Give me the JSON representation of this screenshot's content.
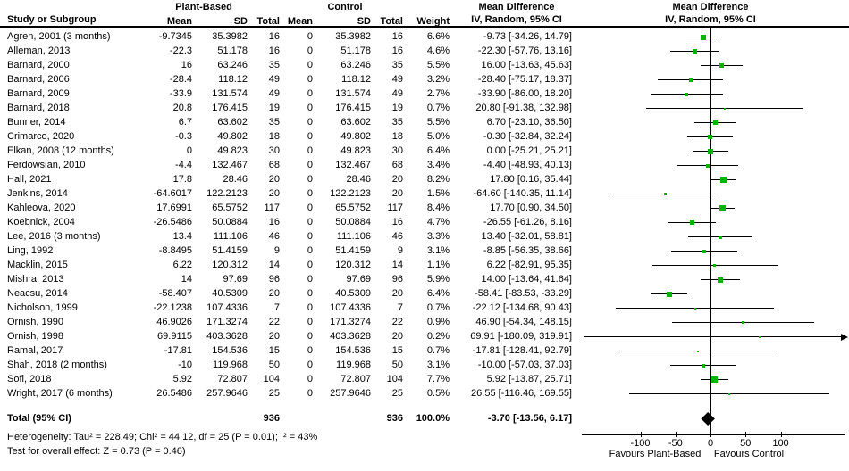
{
  "header": {
    "study_col": "Study or Subgroup",
    "group1": "Plant-Based",
    "group2": "Control",
    "mean": "Mean",
    "sd": "SD",
    "total": "Total",
    "weight": "Weight",
    "md_title": "Mean Difference",
    "md_subtitle": "IV, Random, 95% CI"
  },
  "footer": {
    "heterogeneity": "Heterogeneity: Tau² = 228.49; Chi² = 44.12, df = 25 (P = 0.01); I² = 43%",
    "overall_effect": "Test for overall effect: Z = 0.73 (P = 0.46)"
  },
  "chart_data": {
    "type": "scatter",
    "title": "Mean Difference",
    "subtitle": "IV, Random, 95% CI",
    "xlabel_left": "Favours Plant-Based",
    "xlabel_right": "Favours Control",
    "x_ticks": [
      -100,
      -50,
      0,
      50,
      100
    ],
    "marker_color": "#00b400",
    "line_color": "#000000",
    "studies": [
      {
        "name": "Agren, 2001 (3 months)",
        "mean_pb": "-9.7345",
        "sd_pb": "35.3982",
        "n_pb": "16",
        "mean_c": "0",
        "sd_c": "35.3982",
        "n_c": "16",
        "weight": "6.6%",
        "w": 6.6,
        "ci_text": "-9.73 [-34.26, 14.79]",
        "md": -9.73,
        "lo": -34.26,
        "hi": 14.79
      },
      {
        "name": "Alleman, 2013",
        "mean_pb": "-22.3",
        "sd_pb": "51.178",
        "n_pb": "16",
        "mean_c": "0",
        "sd_c": "51.178",
        "n_c": "16",
        "weight": "4.6%",
        "w": 4.6,
        "ci_text": "-22.30 [-57.76, 13.16]",
        "md": -22.3,
        "lo": -57.76,
        "hi": 13.16
      },
      {
        "name": "Barnard, 2000",
        "mean_pb": "16",
        "sd_pb": "63.246",
        "n_pb": "35",
        "mean_c": "0",
        "sd_c": "63.246",
        "n_c": "35",
        "weight": "5.5%",
        "w": 5.5,
        "ci_text": "16.00 [-13.63, 45.63]",
        "md": 16.0,
        "lo": -13.63,
        "hi": 45.63
      },
      {
        "name": "Barnard, 2006",
        "mean_pb": "-28.4",
        "sd_pb": "118.12",
        "n_pb": "49",
        "mean_c": "0",
        "sd_c": "118.12",
        "n_c": "49",
        "weight": "3.2%",
        "w": 3.2,
        "ci_text": "-28.40 [-75.17, 18.37]",
        "md": -28.4,
        "lo": -75.17,
        "hi": 18.37
      },
      {
        "name": "Barnard, 2009",
        "mean_pb": "-33.9",
        "sd_pb": "131.574",
        "n_pb": "49",
        "mean_c": "0",
        "sd_c": "131.574",
        "n_c": "49",
        "weight": "2.7%",
        "w": 2.7,
        "ci_text": "-33.90 [-86.00, 18.20]",
        "md": -33.9,
        "lo": -86.0,
        "hi": 18.2
      },
      {
        "name": "Barnard, 2018",
        "mean_pb": "20.8",
        "sd_pb": "176.415",
        "n_pb": "19",
        "mean_c": "0",
        "sd_c": "176.415",
        "n_c": "19",
        "weight": "0.7%",
        "w": 0.7,
        "ci_text": "20.80 [-91.38, 132.98]",
        "md": 20.8,
        "lo": -91.38,
        "hi": 132.98
      },
      {
        "name": "Bunner, 2014",
        "mean_pb": "6.7",
        "sd_pb": "63.602",
        "n_pb": "35",
        "mean_c": "0",
        "sd_c": "63.602",
        "n_c": "35",
        "weight": "5.5%",
        "w": 5.5,
        "ci_text": "6.70 [-23.10, 36.50]",
        "md": 6.7,
        "lo": -23.1,
        "hi": 36.5
      },
      {
        "name": "Crimarco, 2020",
        "mean_pb": "-0.3",
        "sd_pb": "49.802",
        "n_pb": "18",
        "mean_c": "0",
        "sd_c": "49.802",
        "n_c": "18",
        "weight": "5.0%",
        "w": 5.0,
        "ci_text": "-0.30 [-32.84, 32.24]",
        "md": -0.3,
        "lo": -32.84,
        "hi": 32.24
      },
      {
        "name": "Elkan, 2008 (12 months)",
        "mean_pb": "0",
        "sd_pb": "49.823",
        "n_pb": "30",
        "mean_c": "0",
        "sd_c": "49.823",
        "n_c": "30",
        "weight": "6.4%",
        "w": 6.4,
        "ci_text": "0.00 [-25.21, 25.21]",
        "md": 0.0,
        "lo": -25.21,
        "hi": 25.21
      },
      {
        "name": "Ferdowsian, 2010",
        "mean_pb": "-4.4",
        "sd_pb": "132.467",
        "n_pb": "68",
        "mean_c": "0",
        "sd_c": "132.467",
        "n_c": "68",
        "weight": "3.4%",
        "w": 3.4,
        "ci_text": "-4.40 [-48.93, 40.13]",
        "md": -4.4,
        "lo": -48.93,
        "hi": 40.13
      },
      {
        "name": "Hall, 2021",
        "mean_pb": "17.8",
        "sd_pb": "28.46",
        "n_pb": "20",
        "mean_c": "0",
        "sd_c": "28.46",
        "n_c": "20",
        "weight": "8.2%",
        "w": 8.2,
        "ci_text": "17.80 [0.16, 35.44]",
        "md": 17.8,
        "lo": 0.16,
        "hi": 35.44
      },
      {
        "name": "Jenkins, 2014",
        "mean_pb": "-64.6017",
        "sd_pb": "122.2123",
        "n_pb": "20",
        "mean_c": "0",
        "sd_c": "122.2123",
        "n_c": "20",
        "weight": "1.5%",
        "w": 1.5,
        "ci_text": "-64.60 [-140.35, 11.14]",
        "md": -64.6,
        "lo": -140.35,
        "hi": 11.14
      },
      {
        "name": "Kahleova, 2020",
        "mean_pb": "17.6991",
        "sd_pb": "65.5752",
        "n_pb": "117",
        "mean_c": "0",
        "sd_c": "65.5752",
        "n_c": "117",
        "weight": "8.4%",
        "w": 8.4,
        "ci_text": "17.70 [0.90, 34.50]",
        "md": 17.7,
        "lo": 0.9,
        "hi": 34.5
      },
      {
        "name": "Koebnick, 2004",
        "mean_pb": "-26.5486",
        "sd_pb": "50.0884",
        "n_pb": "16",
        "mean_c": "0",
        "sd_c": "50.0884",
        "n_c": "16",
        "weight": "4.7%",
        "w": 4.7,
        "ci_text": "-26.55 [-61.26, 8.16]",
        "md": -26.55,
        "lo": -61.26,
        "hi": 8.16
      },
      {
        "name": "Lee, 2016 (3 months)",
        "mean_pb": "13.4",
        "sd_pb": "111.106",
        "n_pb": "46",
        "mean_c": "0",
        "sd_c": "111.106",
        "n_c": "46",
        "weight": "3.3%",
        "w": 3.3,
        "ci_text": "13.40 [-32.01, 58.81]",
        "md": 13.4,
        "lo": -32.01,
        "hi": 58.81
      },
      {
        "name": "Ling, 1992",
        "mean_pb": "-8.8495",
        "sd_pb": "51.4159",
        "n_pb": "9",
        "mean_c": "0",
        "sd_c": "51.4159",
        "n_c": "9",
        "weight": "3.1%",
        "w": 3.1,
        "ci_text": "-8.85 [-56.35, 38.66]",
        "md": -8.85,
        "lo": -56.35,
        "hi": 38.66
      },
      {
        "name": "Macklin, 2015",
        "mean_pb": "6.22",
        "sd_pb": "120.312",
        "n_pb": "14",
        "mean_c": "0",
        "sd_c": "120.312",
        "n_c": "14",
        "weight": "1.1%",
        "w": 1.1,
        "ci_text": "6.22 [-82.91, 95.35]",
        "md": 6.22,
        "lo": -82.91,
        "hi": 95.35
      },
      {
        "name": "Mishra, 2013",
        "mean_pb": "14",
        "sd_pb": "97.69",
        "n_pb": "96",
        "mean_c": "0",
        "sd_c": "97.69",
        "n_c": "96",
        "weight": "5.9%",
        "w": 5.9,
        "ci_text": "14.00 [-13.64, 41.64]",
        "md": 14.0,
        "lo": -13.64,
        "hi": 41.64
      },
      {
        "name": "Neacsu, 2014",
        "mean_pb": "-58.407",
        "sd_pb": "40.5309",
        "n_pb": "20",
        "mean_c": "0",
        "sd_c": "40.5309",
        "n_c": "20",
        "weight": "6.4%",
        "w": 6.4,
        "ci_text": "-58.41 [-83.53, -33.29]",
        "md": -58.41,
        "lo": -83.53,
        "hi": -33.29
      },
      {
        "name": "Nicholson, 1999",
        "mean_pb": "-22.1238",
        "sd_pb": "107.4336",
        "n_pb": "7",
        "mean_c": "0",
        "sd_c": "107.4336",
        "n_c": "7",
        "weight": "0.7%",
        "w": 0.7,
        "ci_text": "-22.12 [-134.68, 90.43]",
        "md": -22.12,
        "lo": -134.68,
        "hi": 90.43
      },
      {
        "name": "Ornish, 1990",
        "mean_pb": "46.9026",
        "sd_pb": "171.3274",
        "n_pb": "22",
        "mean_c": "0",
        "sd_c": "171.3274",
        "n_c": "22",
        "weight": "0.9%",
        "w": 0.9,
        "ci_text": "46.90 [-54.34, 148.15]",
        "md": 46.9,
        "lo": -54.34,
        "hi": 148.15
      },
      {
        "name": "Ornish, 1998",
        "mean_pb": "69.9115",
        "sd_pb": "403.3628",
        "n_pb": "20",
        "mean_c": "0",
        "sd_c": "403.3628",
        "n_c": "20",
        "weight": "0.2%",
        "w": 0.2,
        "ci_text": "69.91 [-180.09, 319.91]",
        "md": 69.91,
        "lo": -180.09,
        "hi": 319.91
      },
      {
        "name": "Ramal, 2017",
        "mean_pb": "-17.81",
        "sd_pb": "154.536",
        "n_pb": "15",
        "mean_c": "0",
        "sd_c": "154.536",
        "n_c": "15",
        "weight": "0.7%",
        "w": 0.7,
        "ci_text": "-17.81 [-128.41, 92.79]",
        "md": -17.81,
        "lo": -128.41,
        "hi": 92.79
      },
      {
        "name": "Shah, 2018 (2 months)",
        "mean_pb": "-10",
        "sd_pb": "119.968",
        "n_pb": "50",
        "mean_c": "0",
        "sd_c": "119.968",
        "n_c": "50",
        "weight": "3.1%",
        "w": 3.1,
        "ci_text": "-10.00 [-57.03, 37.03]",
        "md": -10.0,
        "lo": -57.03,
        "hi": 37.03
      },
      {
        "name": "Sofi, 2018",
        "mean_pb": "5.92",
        "sd_pb": "72.807",
        "n_pb": "104",
        "mean_c": "0",
        "sd_c": "72.807",
        "n_c": "104",
        "weight": "7.7%",
        "w": 7.7,
        "ci_text": "5.92 [-13.87, 25.71]",
        "md": 5.92,
        "lo": -13.87,
        "hi": 25.71
      },
      {
        "name": "Wright, 2017 (6 months)",
        "mean_pb": "26.5486",
        "sd_pb": "257.9646",
        "n_pb": "25",
        "mean_c": "0",
        "sd_c": "257.9646",
        "n_c": "25",
        "weight": "0.5%",
        "w": 0.5,
        "ci_text": "26.55 [-116.46, 169.55]",
        "md": 26.55,
        "lo": -116.46,
        "hi": 169.55
      }
    ],
    "total": {
      "label": "Total (95% CI)",
      "n_pb": "936",
      "n_c": "936",
      "weight": "100.0%",
      "ci_text": "-3.70 [-13.56, 6.17]",
      "md": -3.7,
      "lo": -13.56,
      "hi": 6.17
    }
  }
}
